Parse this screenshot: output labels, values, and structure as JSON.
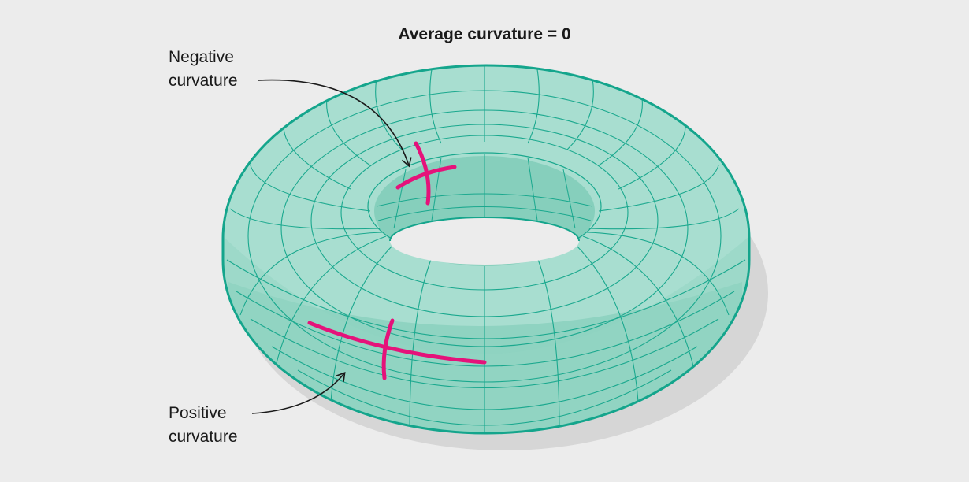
{
  "title": "Average curvature = 0",
  "labels": {
    "negative": {
      "line1": "Negative",
      "line2": "curvature"
    },
    "positive": {
      "line1": "Positive",
      "line2": "curvature"
    }
  },
  "colors": {
    "background": "#ececec",
    "surface": "#9fdccc",
    "surface_dark": "#7fcdb9",
    "grid": "#1aa88e",
    "outline": "#14a58c",
    "highlight": "#e5127a",
    "shadow": "#d6d6d6",
    "text": "#1a1a1a"
  }
}
